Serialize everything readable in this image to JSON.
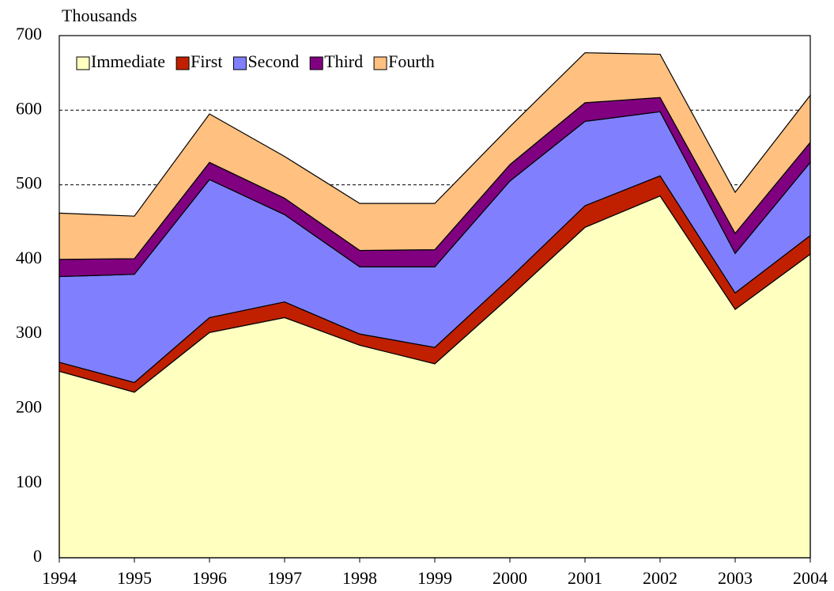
{
  "chart_data": {
    "type": "stacked_area",
    "y_label": "Thousands",
    "x": [
      1994,
      1995,
      1996,
      1997,
      1998,
      1999,
      2000,
      2001,
      2002,
      2003,
      2004
    ],
    "xlim": [
      1994,
      2004
    ],
    "xticks": [
      1994,
      1995,
      1996,
      1997,
      1998,
      1999,
      2000,
      2001,
      2002,
      2003,
      2004
    ],
    "ylim": [
      0,
      700
    ],
    "yticks": [
      0,
      100,
      200,
      300,
      400,
      500,
      600,
      700
    ],
    "grid": true,
    "legend": "top-left",
    "series": [
      {
        "name": "Immediate",
        "color": "#ffffc0",
        "values": [
          250,
          222,
          302,
          322,
          285,
          260,
          350,
          443,
          485,
          333,
          407
        ]
      },
      {
        "name": "First",
        "color": "#c02000",
        "values": [
          12,
          13,
          20,
          21,
          15,
          22,
          25,
          29,
          27,
          22,
          25
        ]
      },
      {
        "name": "Second",
        "color": "#8080ff",
        "values": [
          115,
          145,
          185,
          117,
          90,
          108,
          130,
          113,
          86,
          53,
          98
        ]
      },
      {
        "name": "Third",
        "color": "#800080",
        "values": [
          23,
          21,
          23,
          22,
          22,
          23,
          22,
          25,
          19,
          27,
          27
        ]
      },
      {
        "name": "Fourth",
        "color": "#ffc080",
        "values": [
          62,
          57,
          65,
          56,
          63,
          62,
          51,
          67,
          58,
          55,
          63
        ]
      }
    ]
  }
}
